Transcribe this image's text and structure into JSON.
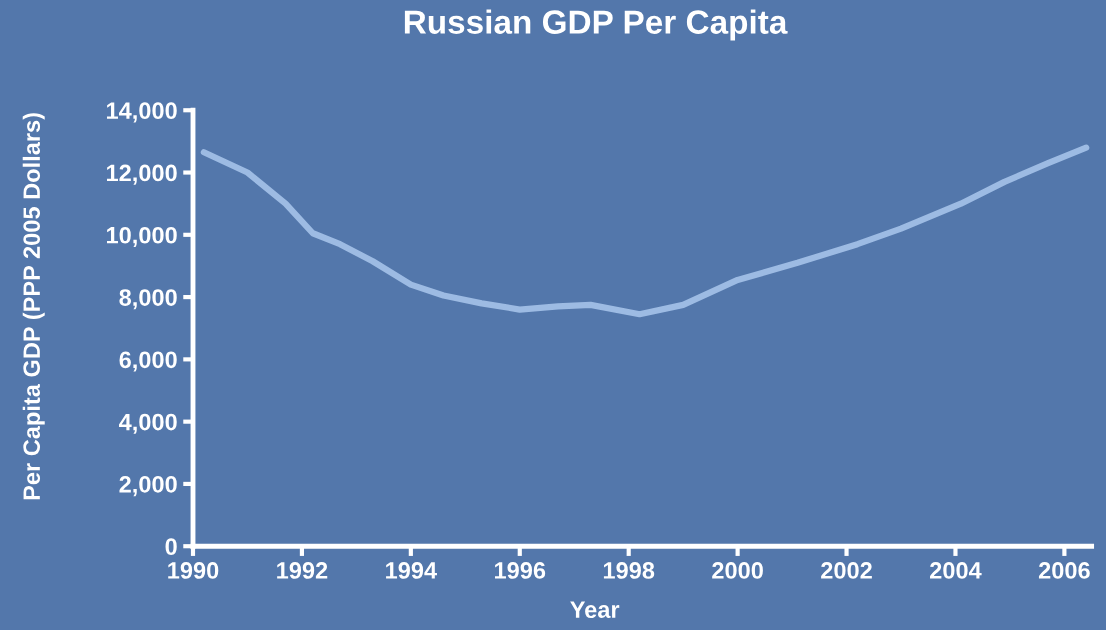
{
  "chart_data": {
    "type": "line",
    "title": "Russian GDP Per Capita",
    "xlabel": "Year",
    "ylabel": "Per Capita GDP (PPP 2005 Dollars)",
    "x": [
      1990.2,
      1991.0,
      1991.7,
      1992.2,
      1992.7,
      1993.3,
      1994.0,
      1994.6,
      1995.3,
      1996.0,
      1996.7,
      1997.3,
      1998.2,
      1999.0,
      2000.0,
      2001.1,
      2002.2,
      2003.0,
      2004.1,
      2004.9,
      2005.7,
      2006.4
    ],
    "series": [
      {
        "color": "#9dbbe3",
        "values": [
          12650,
          12000,
          11000,
          10050,
          9700,
          9150,
          8400,
          8050,
          7800,
          7600,
          7700,
          7750,
          7450,
          7750,
          8550,
          9100,
          9700,
          10200,
          11000,
          11700,
          12300,
          12800
        ]
      }
    ],
    "xlim": [
      1990,
      2006.5
    ],
    "xticks": [
      1990,
      1992,
      1994,
      1996,
      1998,
      2000,
      2002,
      2004,
      2006
    ],
    "ylim": [
      0,
      14000
    ],
    "yticks": [
      0,
      {
        "value": 2000,
        "label": "2,000"
      },
      {
        "value": 4000,
        "label": "4,000"
      },
      {
        "value": 6000,
        "label": "6,000"
      },
      {
        "value": 8000,
        "label": "8,000"
      },
      {
        "value": 10000,
        "label": "10,000"
      },
      {
        "value": 12000,
        "label": "12,000"
      },
      {
        "value": 14000,
        "label": "14,000"
      }
    ],
    "grid": false,
    "line_style": "solid"
  }
}
